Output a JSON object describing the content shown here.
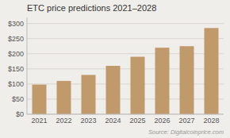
{
  "chart_data": {
    "type": "bar",
    "title": "ETC price predictions 2021–2028",
    "categories": [
      "2021",
      "2022",
      "2023",
      "2024",
      "2025",
      "2026",
      "2027",
      "2028"
    ],
    "values": [
      98,
      110,
      130,
      160,
      190,
      220,
      225,
      285
    ],
    "color": "#C19A6B",
    "ylim": [
      0,
      320
    ],
    "yticks": [
      {
        "value": 0,
        "label": "$0"
      },
      {
        "value": 50,
        "label": "$50"
      },
      {
        "value": 100,
        "label": "$100"
      },
      {
        "value": 150,
        "label": "$150"
      },
      {
        "value": 200,
        "label": "$200"
      },
      {
        "value": 250,
        "label": "$250"
      },
      {
        "value": 300,
        "label": "$300"
      }
    ],
    "grid": true,
    "annotation": "Source: Digitalcoinprice.com"
  }
}
